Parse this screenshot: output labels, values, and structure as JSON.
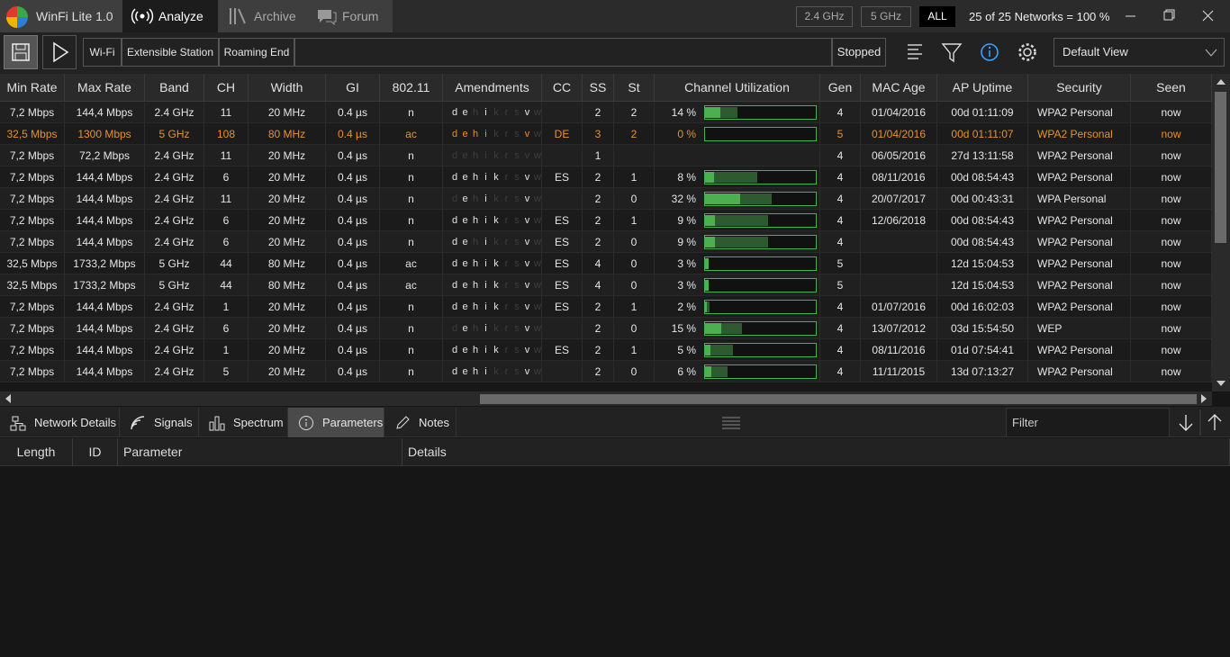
{
  "app": {
    "title": "WinFi Lite 1.0",
    "tabs": [
      "Analyze",
      "Archive",
      "Forum"
    ],
    "active_tab": 0,
    "band_filters": [
      "2.4 GHz",
      "5 GHz",
      "ALL"
    ],
    "active_band_filter": 2,
    "network_count": "25 of 25 Networks = 100 %"
  },
  "toolbar": {
    "modes": [
      "Wi-Fi",
      "Extensible Station",
      "Roaming End"
    ],
    "status": "Stopped",
    "view": "Default View"
  },
  "table": {
    "columns": [
      "Min Rate",
      "Max Rate",
      "Band",
      "CH",
      "Width",
      "GI",
      "802.11",
      "Amendments",
      "CC",
      "SS",
      "St",
      "Channel Utilization",
      "Gen",
      "MAC Age",
      "AP Uptime",
      "Security",
      "Seen"
    ],
    "amendment_letters": [
      "d",
      "e",
      "h",
      "i",
      "k",
      "r",
      "s",
      "v",
      "w"
    ],
    "rows": [
      {
        "cells": [
          "7,2 Mbps",
          "144,4 Mbps",
          "2.4 GHz",
          "11",
          "20 MHz",
          "0.4 µs",
          "n",
          null,
          null,
          "2",
          "2",
          null,
          "4",
          "01/04/2016",
          "00d 01:11:09",
          "WPA2 Personal",
          "now"
        ],
        "amendments_on": [
          true,
          true,
          false,
          true,
          false,
          false,
          false,
          true,
          false
        ],
        "utilization": {
          "value": 14,
          "label": "14 %"
        },
        "utilization_peak": 29
      },
      {
        "cells": [
          "32,5 Mbps",
          "1300 Mbps",
          "5 GHz",
          "108",
          "80 MHz",
          "0.4 µs",
          "ac",
          null,
          "DE",
          "3",
          "2",
          null,
          "5",
          "01/04/2016",
          "00d 01:11:07",
          "WPA2 Personal",
          "now"
        ],
        "amendments_on": [
          true,
          true,
          true,
          true,
          false,
          false,
          false,
          true,
          false
        ],
        "utilization": {
          "value": 0,
          "label": "0 %"
        },
        "utilization_peak": 0,
        "selected": true
      },
      {
        "cells": [
          "7,2 Mbps",
          "72,2 Mbps",
          "2.4 GHz",
          "11",
          "20 MHz",
          "0.4 µs",
          "n",
          null,
          null,
          "1",
          null,
          null,
          "4",
          "06/05/2016",
          "27d 13:11:58",
          "WPA2 Personal",
          "now"
        ],
        "amendments_on": [
          false,
          false,
          false,
          false,
          false,
          false,
          false,
          false,
          false
        ],
        "utilization": null,
        "utilization_peak": null
      },
      {
        "cells": [
          "7,2 Mbps",
          "144,4 Mbps",
          "2.4 GHz",
          "6",
          "20 MHz",
          "0.4 µs",
          "n",
          null,
          "ES",
          "2",
          "1",
          null,
          "4",
          "08/11/2016",
          "00d 08:54:43",
          "WPA2 Personal",
          "now"
        ],
        "amendments_on": [
          true,
          true,
          true,
          true,
          true,
          false,
          false,
          true,
          false
        ],
        "utilization": {
          "value": 8,
          "label": "8 %"
        },
        "utilization_peak": 47
      },
      {
        "cells": [
          "7,2 Mbps",
          "144,4 Mbps",
          "2.4 GHz",
          "11",
          "20 MHz",
          "0.4 µs",
          "n",
          null,
          null,
          "2",
          "0",
          null,
          "4",
          "20/07/2017",
          "00d 00:43:31",
          "WPA Personal",
          "now"
        ],
        "amendments_on": [
          false,
          true,
          false,
          true,
          false,
          false,
          false,
          true,
          false
        ],
        "utilization": {
          "value": 32,
          "label": "32 %"
        },
        "utilization_peak": 60
      },
      {
        "cells": [
          "7,2 Mbps",
          "144,4 Mbps",
          "2.4 GHz",
          "6",
          "20 MHz",
          "0.4 µs",
          "n",
          null,
          "ES",
          "2",
          "1",
          null,
          "4",
          "12/06/2018",
          "00d 08:54:43",
          "WPA2 Personal",
          "now"
        ],
        "amendments_on": [
          true,
          true,
          true,
          true,
          true,
          false,
          false,
          true,
          false
        ],
        "utilization": {
          "value": 9,
          "label": "9 %"
        },
        "utilization_peak": 57
      },
      {
        "cells": [
          "7,2 Mbps",
          "144,4 Mbps",
          "2.4 GHz",
          "6",
          "20 MHz",
          "0.4 µs",
          "n",
          null,
          "ES",
          "2",
          "0",
          null,
          "4",
          null,
          "00d 08:54:43",
          "WPA2 Personal",
          "now"
        ],
        "amendments_on": [
          true,
          true,
          false,
          true,
          false,
          false,
          false,
          true,
          false
        ],
        "utilization": {
          "value": 9,
          "label": "9 %"
        },
        "utilization_peak": 57
      },
      {
        "cells": [
          "32,5 Mbps",
          "1733,2 Mbps",
          "5 GHz",
          "44",
          "80 MHz",
          "0.4 µs",
          "ac",
          null,
          "ES",
          "4",
          "0",
          null,
          "5",
          null,
          "12d 15:04:53",
          "WPA2 Personal",
          "now"
        ],
        "amendments_on": [
          true,
          true,
          true,
          true,
          true,
          false,
          false,
          true,
          false
        ],
        "utilization": {
          "value": 3,
          "label": "3 %"
        },
        "utilization_peak": 3
      },
      {
        "cells": [
          "32,5 Mbps",
          "1733,2 Mbps",
          "5 GHz",
          "44",
          "80 MHz",
          "0.4 µs",
          "ac",
          null,
          "ES",
          "4",
          "0",
          null,
          "5",
          null,
          "12d 15:04:53",
          "WPA2 Personal",
          "now"
        ],
        "amendments_on": [
          true,
          true,
          true,
          true,
          true,
          false,
          false,
          true,
          false
        ],
        "utilization": {
          "value": 3,
          "label": "3 %"
        },
        "utilization_peak": 3
      },
      {
        "cells": [
          "7,2 Mbps",
          "144,4 Mbps",
          "2.4 GHz",
          "1",
          "20 MHz",
          "0.4 µs",
          "n",
          null,
          "ES",
          "2",
          "1",
          null,
          "4",
          "01/07/2016",
          "00d 16:02:03",
          "WPA2 Personal",
          "now"
        ],
        "amendments_on": [
          true,
          true,
          true,
          true,
          true,
          false,
          false,
          true,
          false
        ],
        "utilization": {
          "value": 2,
          "label": "2 %"
        },
        "utilization_peak": 4
      },
      {
        "cells": [
          "7,2 Mbps",
          "144,4 Mbps",
          "2.4 GHz",
          "6",
          "20 MHz",
          "0.4 µs",
          "n",
          null,
          null,
          "2",
          "0",
          null,
          "4",
          "13/07/2012",
          "03d 15:54:50",
          "WEP",
          "now"
        ],
        "amendments_on": [
          false,
          true,
          false,
          true,
          false,
          false,
          false,
          true,
          false
        ],
        "utilization": {
          "value": 15,
          "label": "15 %"
        },
        "utilization_peak": 33
      },
      {
        "cells": [
          "7,2 Mbps",
          "144,4 Mbps",
          "2.4 GHz",
          "1",
          "20 MHz",
          "0.4 µs",
          "n",
          null,
          "ES",
          "2",
          "1",
          null,
          "4",
          "08/11/2016",
          "01d 07:54:41",
          "WPA2 Personal",
          "now"
        ],
        "amendments_on": [
          true,
          true,
          true,
          true,
          true,
          false,
          false,
          true,
          false
        ],
        "utilization": {
          "value": 5,
          "label": "5 %"
        },
        "utilization_peak": 25
      },
      {
        "cells": [
          "7,2 Mbps",
          "144,4 Mbps",
          "2.4 GHz",
          "5",
          "20 MHz",
          "0.4 µs",
          "n",
          null,
          null,
          "2",
          "0",
          null,
          "4",
          "11/11/2015",
          "13d 07:13:27",
          "WPA2 Personal",
          "now"
        ],
        "amendments_on": [
          true,
          true,
          true,
          true,
          false,
          false,
          false,
          true,
          false
        ],
        "utilization": {
          "value": 6,
          "label": "6 %"
        },
        "utilization_peak": 20
      }
    ]
  },
  "details": {
    "tabs": [
      "Network Details",
      "Signals",
      "Spectrum",
      "Parameters",
      "Notes"
    ],
    "active_tab": 3,
    "filter_placeholder": "Filter",
    "columns": [
      "Length",
      "ID",
      "Parameter",
      "Details"
    ]
  }
}
